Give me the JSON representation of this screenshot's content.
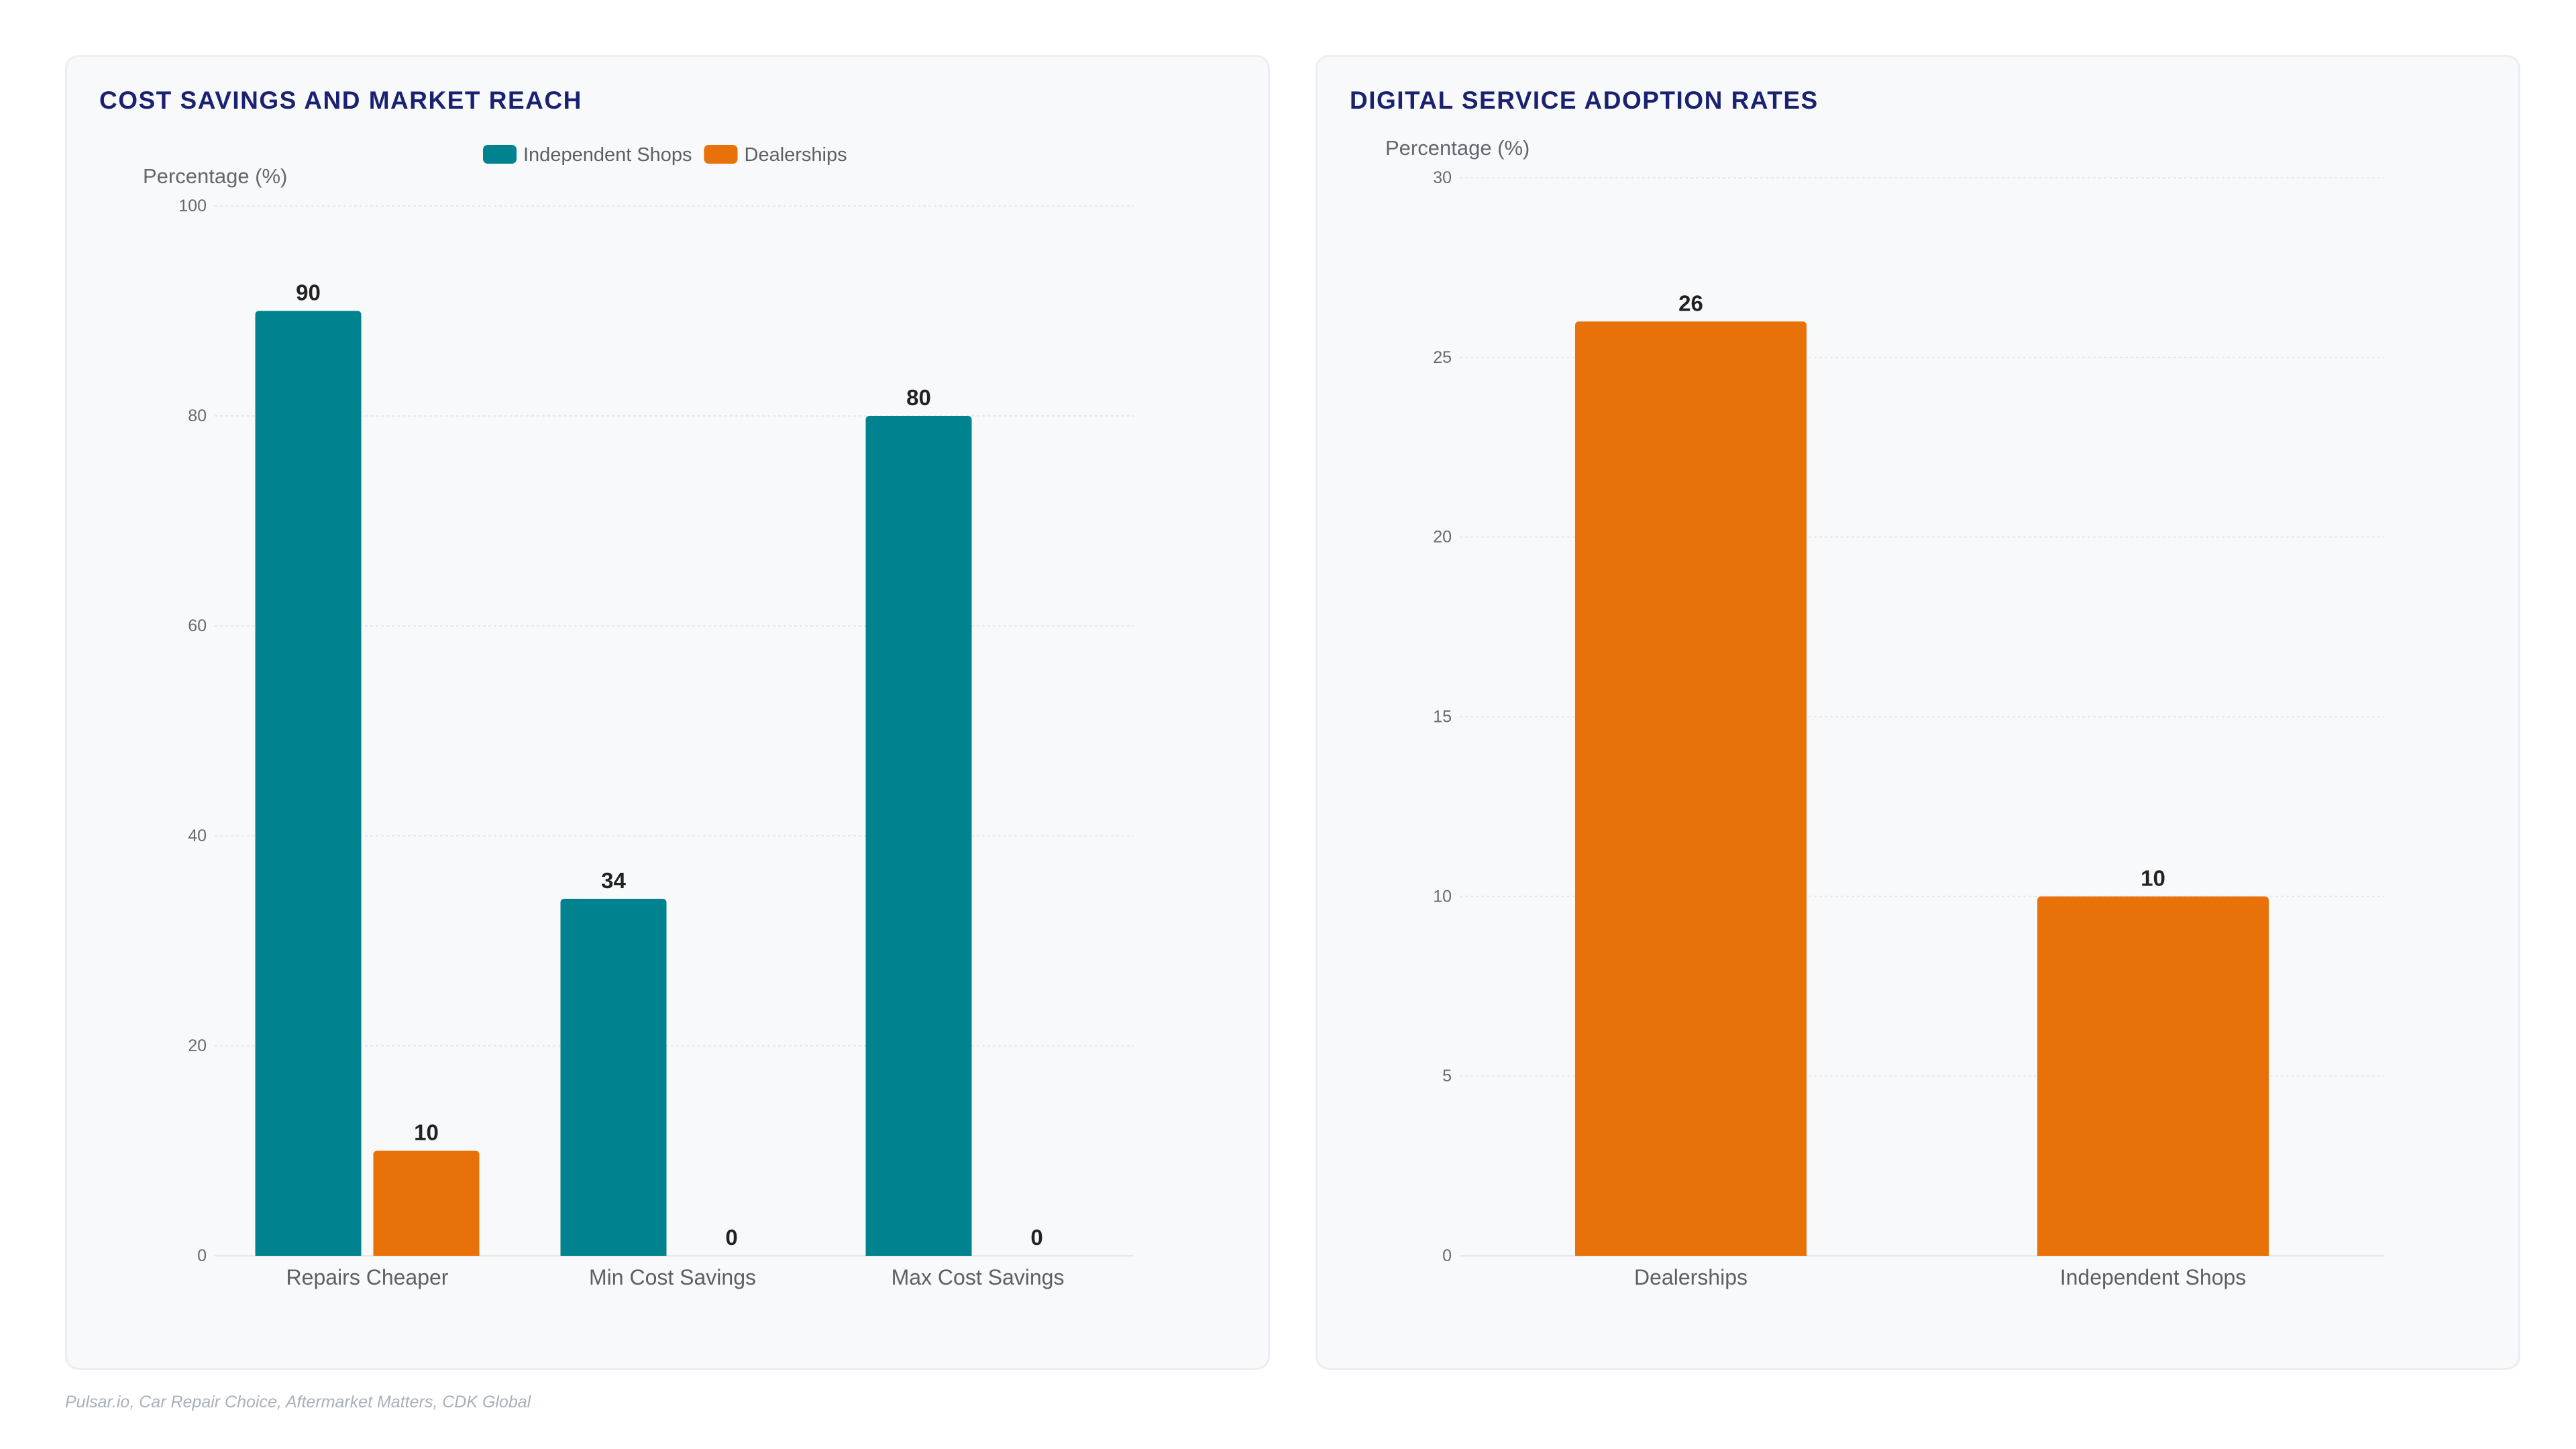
{
  "source_note": "Pulsar.io, Car Repair Choice, Aftermarket Matters, CDK Global",
  "colors": {
    "independent": "#00838f",
    "dealerships": "#e8710a",
    "title": "#1a2170",
    "grid": "#e6e8ec"
  },
  "chart_data": [
    {
      "type": "bar",
      "title": "COST SAVINGS AND MARKET REACH",
      "ylabel": "Percentage (%)",
      "ylim": [
        0,
        100
      ],
      "yticks": [
        0,
        20,
        40,
        60,
        80,
        100
      ],
      "categories": [
        "Repairs Cheaper",
        "Min Cost Savings",
        "Max Cost Savings"
      ],
      "legend": "top-center",
      "grid": true,
      "series": [
        {
          "name": "Independent Shops",
          "color": "#00838f",
          "values": [
            90,
            34,
            80
          ]
        },
        {
          "name": "Dealerships",
          "color": "#e8710a",
          "values": [
            10,
            0,
            0
          ]
        }
      ]
    },
    {
      "type": "bar",
      "title": "DIGITAL SERVICE ADOPTION RATES",
      "ylabel": "Percentage (%)",
      "ylim": [
        0,
        30
      ],
      "yticks": [
        0,
        5,
        10,
        15,
        20,
        25,
        30
      ],
      "categories": [
        "Dealerships",
        "Independent Shops"
      ],
      "grid": true,
      "series": [
        {
          "color": "#e8710a",
          "values": [
            26,
            10
          ]
        }
      ]
    }
  ]
}
